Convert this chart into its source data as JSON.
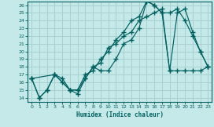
{
  "xlabel": "Humidex (Indice chaleur)",
  "bg_color": "#c5e8e8",
  "grid_color": "#a8d0d0",
  "line_color": "#006060",
  "xlim": [
    -0.5,
    23.5
  ],
  "ylim": [
    13.5,
    26.5
  ],
  "xticks": [
    0,
    1,
    2,
    3,
    4,
    5,
    6,
    7,
    8,
    9,
    10,
    11,
    12,
    13,
    14,
    15,
    16,
    17,
    18,
    19,
    20,
    21,
    22,
    23
  ],
  "yticks": [
    14,
    15,
    16,
    17,
    18,
    19,
    20,
    21,
    22,
    23,
    24,
    25,
    26
  ],
  "line1_x": [
    0,
    1,
    2,
    3,
    4,
    5,
    6,
    7,
    8,
    9,
    10,
    11,
    12,
    13,
    14,
    15,
    16,
    17,
    18,
    19,
    20,
    21,
    22,
    23
  ],
  "line1_y": [
    16.5,
    14.0,
    15.0,
    17.0,
    16.0,
    15.0,
    15.0,
    17.0,
    17.5,
    19.0,
    20.0,
    21.5,
    22.5,
    24.0,
    24.5,
    26.5,
    26.0,
    25.0,
    25.0,
    25.5,
    24.0,
    22.0,
    20.0,
    18.0
  ],
  "line2_x": [
    0,
    1,
    2,
    3,
    4,
    5,
    6,
    7,
    8,
    9,
    10,
    11,
    12,
    13,
    14,
    15,
    16,
    17,
    18,
    19,
    20,
    21,
    22,
    23
  ],
  "line2_y": [
    16.5,
    14.0,
    15.0,
    17.0,
    16.5,
    15.0,
    14.5,
    16.5,
    18.0,
    18.5,
    20.5,
    21.0,
    22.0,
    22.5,
    24.0,
    24.5,
    25.0,
    25.5,
    17.5,
    17.5,
    17.5,
    17.5,
    17.5,
    18.0
  ],
  "line3_x": [
    0,
    3,
    5,
    6,
    7,
    8,
    9,
    10,
    11,
    12,
    13,
    14,
    15,
    16,
    17,
    18,
    19,
    20,
    21,
    22,
    23
  ],
  "line3_y": [
    16.5,
    17.0,
    15.0,
    15.0,
    16.5,
    18.0,
    17.5,
    17.5,
    19.0,
    21.0,
    21.5,
    23.0,
    26.5,
    26.0,
    25.0,
    17.5,
    25.0,
    25.5,
    22.5,
    20.0,
    18.0
  ]
}
